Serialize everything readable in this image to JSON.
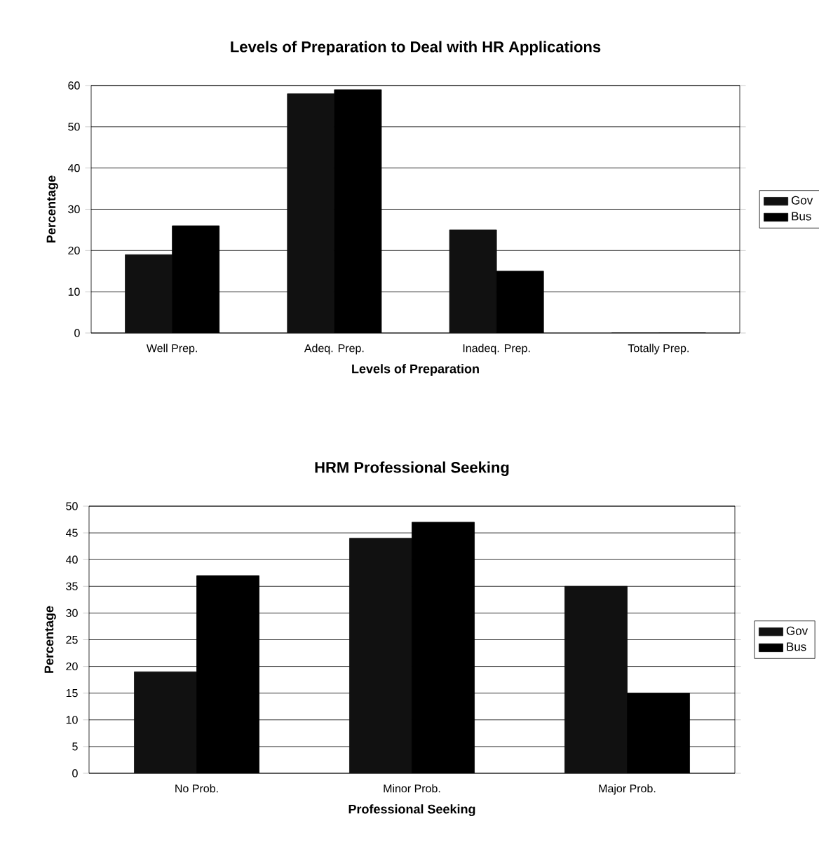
{
  "chart_data": [
    {
      "type": "bar",
      "title": "Levels of Preparation to Deal with HR Applications",
      "xlabel": "Levels of Preparation",
      "ylabel": "Percentage",
      "categories": [
        "Well Prep.",
        "Adeq. Prep.",
        "Inadeq. Prep.",
        "Totally Prep."
      ],
      "series": [
        {
          "name": "Gov",
          "color": "#111111",
          "values": [
            19,
            58,
            25,
            0
          ]
        },
        {
          "name": "Bus",
          "color": "#000000",
          "values": [
            26,
            59,
            15,
            0
          ]
        }
      ],
      "ylim": [
        0,
        60
      ],
      "yticks": [
        0,
        10,
        20,
        30,
        40,
        50,
        60
      ],
      "grid": "y",
      "legend": "right"
    },
    {
      "type": "bar",
      "title": "HRM Professional Seeking",
      "xlabel": "Professional Seeking",
      "ylabel": "Percentage",
      "categories": [
        "No Prob.",
        "Minor Prob.",
        "Major Prob."
      ],
      "series": [
        {
          "name": "Gov",
          "color": "#111111",
          "values": [
            19,
            44,
            35
          ]
        },
        {
          "name": "Bus",
          "color": "#000000",
          "values": [
            37,
            47,
            15
          ]
        }
      ],
      "ylim": [
        0,
        50
      ],
      "yticks": [
        0,
        5,
        10,
        15,
        20,
        25,
        30,
        35,
        40,
        45,
        50
      ],
      "grid": "y",
      "legend": "right"
    }
  ]
}
